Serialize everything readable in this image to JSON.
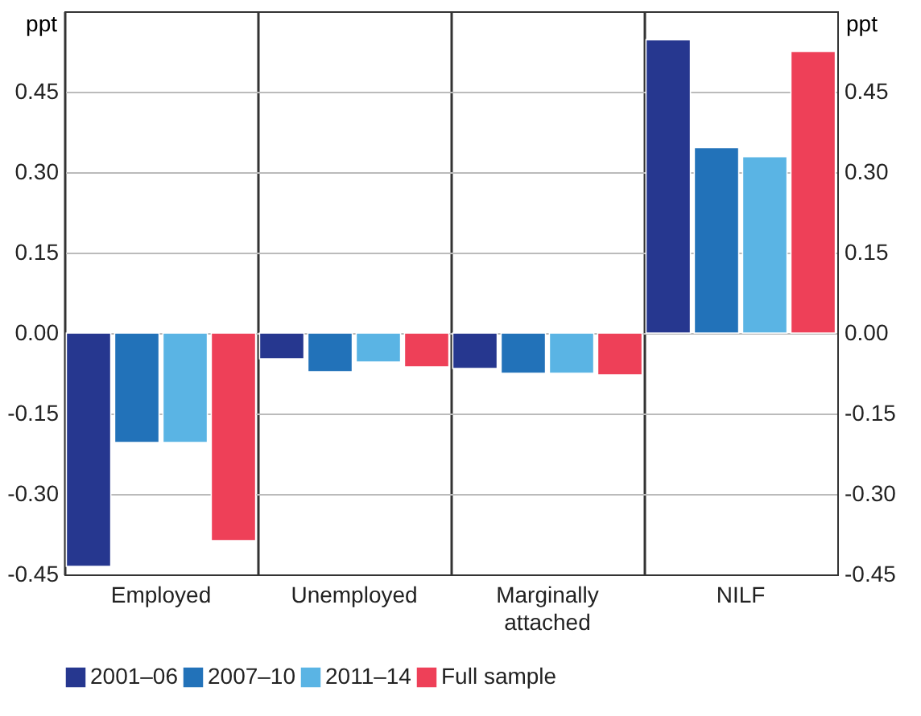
{
  "chart_data": {
    "type": "bar",
    "categories": [
      "Employed",
      "Unemployed",
      "Marginally attached",
      "NILF"
    ],
    "series": [
      {
        "name": "2001–06",
        "color": "#26378f",
        "values": [
          -0.435,
          -0.048,
          -0.066,
          0.547
        ]
      },
      {
        "name": "2007–10",
        "color": "#2272b9",
        "values": [
          -0.204,
          -0.072,
          -0.075,
          0.346
        ]
      },
      {
        "name": "2011–14",
        "color": "#5ab4e4",
        "values": [
          -0.204,
          -0.054,
          -0.075,
          0.329
        ]
      },
      {
        "name": "Full sample",
        "color": "#ee4058",
        "values": [
          -0.387,
          -0.063,
          -0.078,
          0.525
        ]
      }
    ],
    "ylabel": "ppt",
    "y2label": "ppt",
    "ylim": [
      -0.45,
      0.6
    ],
    "yticks": [
      {
        "value": -0.45,
        "label": "-0.45"
      },
      {
        "value": -0.3,
        "label": "-0.30"
      },
      {
        "value": -0.15,
        "label": "-0.15"
      },
      {
        "value": 0,
        "label": "0.00"
      },
      {
        "value": 0.15,
        "label": "0.15"
      },
      {
        "value": 0.3,
        "label": "0.30"
      },
      {
        "value": 0.45,
        "label": "0.45"
      }
    ],
    "y2lim": [
      -0.45,
      0.6
    ],
    "y2ticks": [
      {
        "value": -0.45,
        "label": "-0.45"
      },
      {
        "value": -0.3,
        "label": "-0.30"
      },
      {
        "value": -0.15,
        "label": "-0.15"
      },
      {
        "value": 0,
        "label": "0.00"
      },
      {
        "value": 0.15,
        "label": "0.15"
      },
      {
        "value": 0.3,
        "label": "0.30"
      },
      {
        "value": 0.45,
        "label": "0.45"
      }
    ],
    "grid": "y",
    "legend": "bottom"
  }
}
